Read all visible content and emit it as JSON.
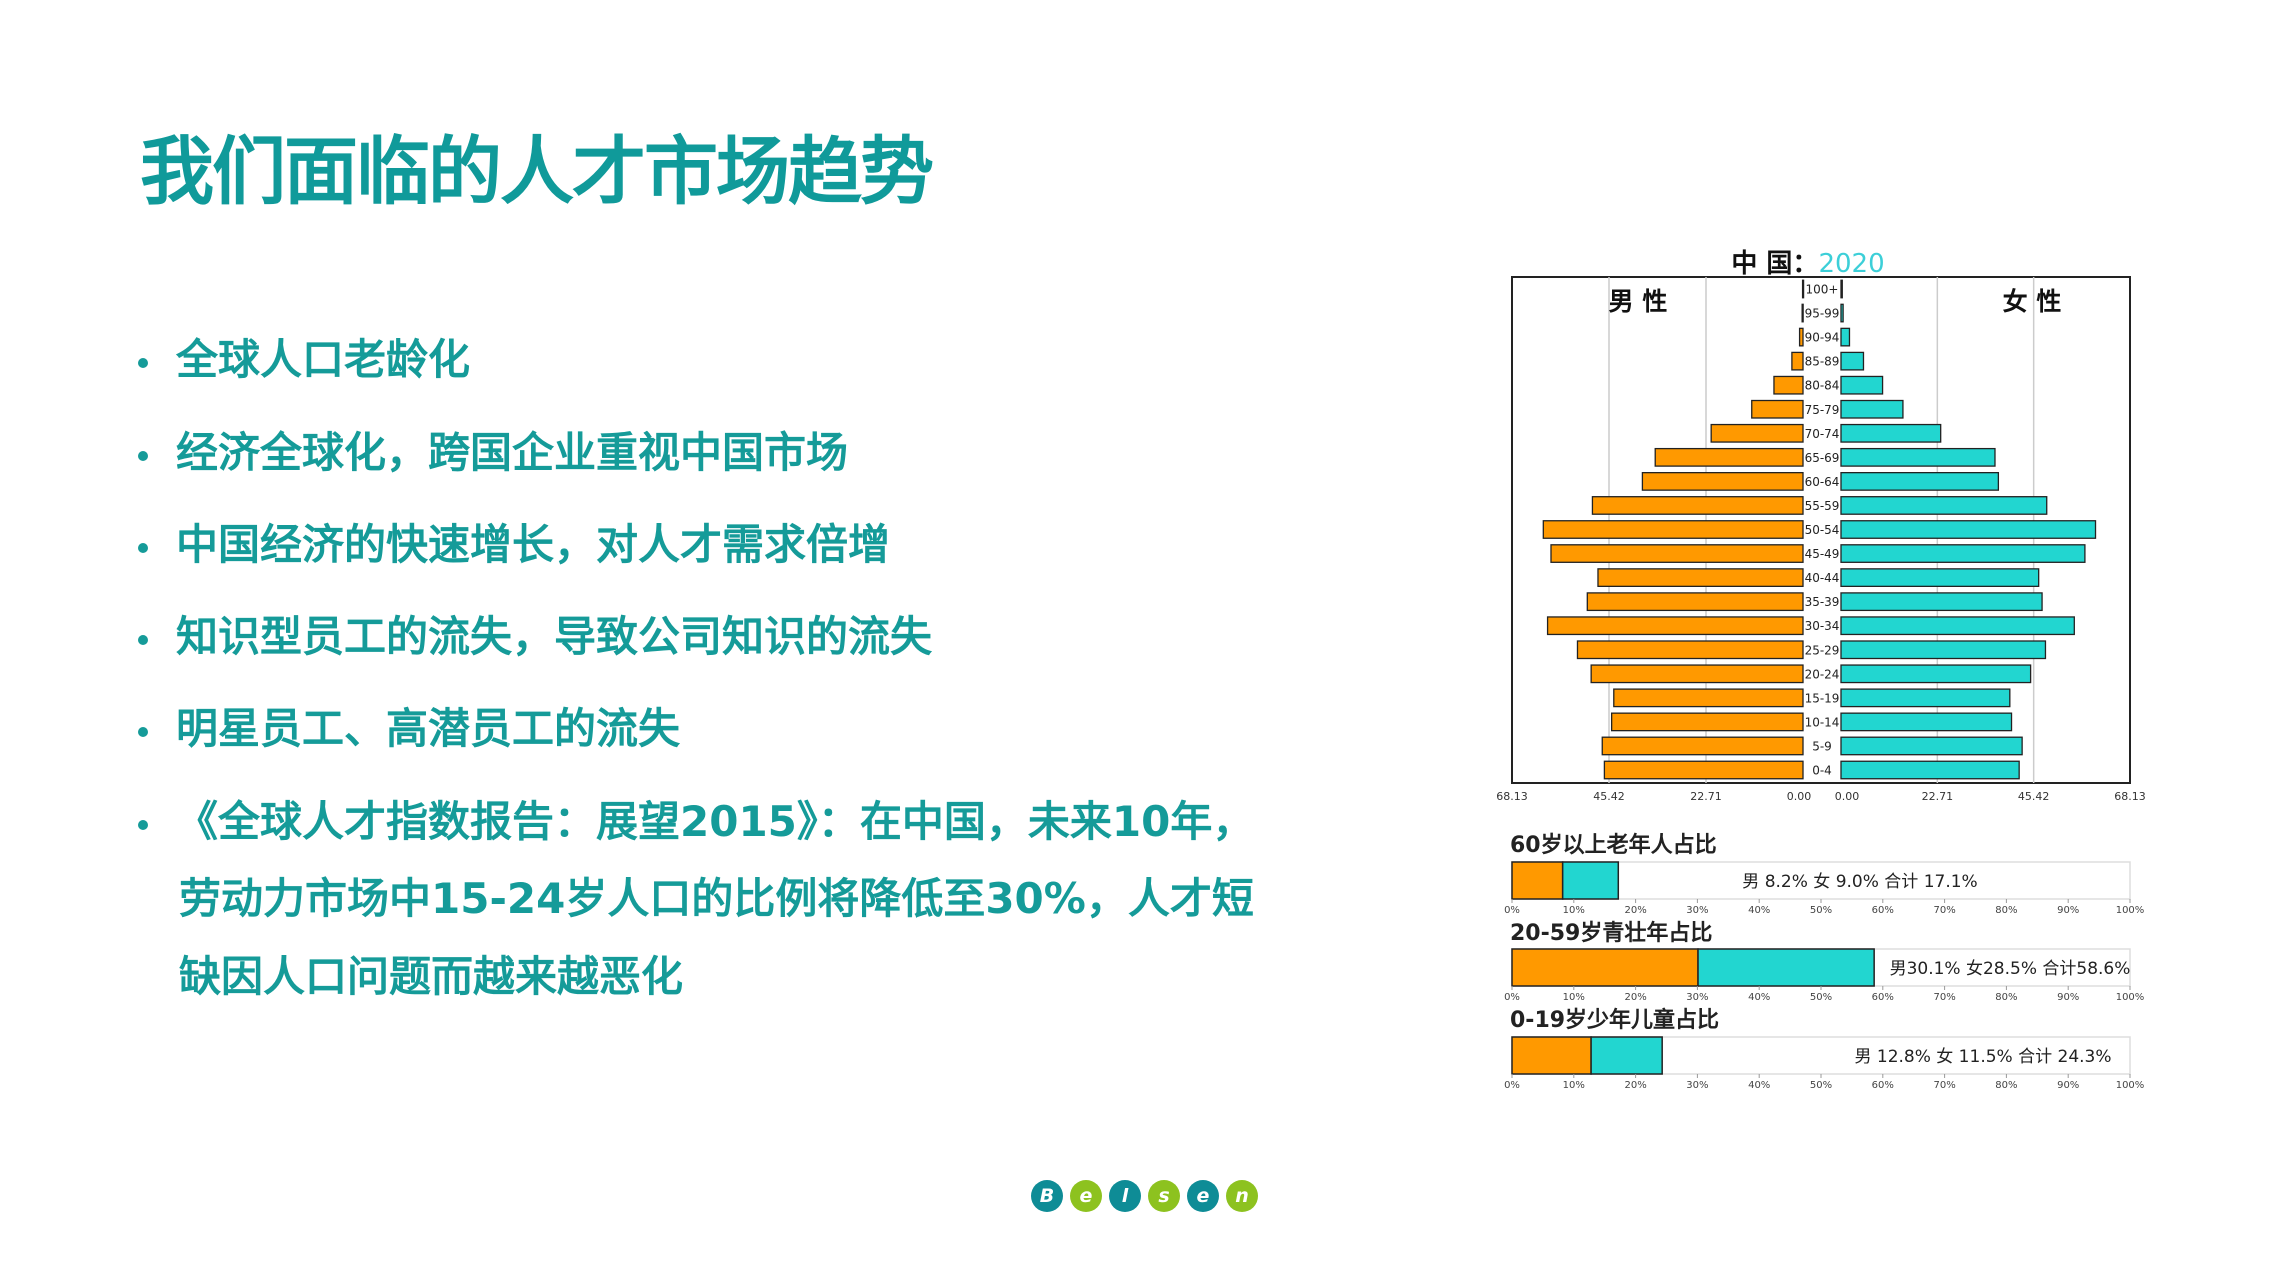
{
  "title": "我们面临的人才市场趋势",
  "bullets": [
    "全球人口老龄化",
    "经济全球化，跨国企业重视中国市场",
    "中国经济的快速增长，对人才需求倍增",
    "知识型员工的流失，导致公司知识的流失",
    "明星员工、高潜员工的流失",
    "《全球人才指数报告：展望2015》：在中国，未来10年，"
  ],
  "bullet_continuation": [
    "劳动力市场中15-24岁人口的比例将降低至30%，人才短",
    "缺因人口问题而越来越恶化"
  ],
  "logo": {
    "letters": [
      "B",
      "e",
      "l",
      "s",
      "e",
      "n"
    ],
    "colors": [
      "#0e8c96",
      "#8dc21f"
    ]
  },
  "colors": {
    "male": "#ff9900",
    "female": "#22d6d0",
    "text": "#159b99"
  },
  "chart_data": [
    {
      "type": "bar",
      "subtype": "population-pyramid",
      "title_prefix": "中 国：",
      "title_year": "2020",
      "male_label": "男 性",
      "female_label": "女 性",
      "categories": [
        "100+",
        "95-99",
        "90-94",
        "85-89",
        "80-84",
        "75-79",
        "70-74",
        "65-69",
        "60-64",
        "55-59",
        "50-54",
        "45-49",
        "40-44",
        "35-39",
        "30-34",
        "25-29",
        "20-24",
        "15-19",
        "10-14",
        "5-9",
        "0-4"
      ],
      "series": [
        {
          "name": "男 性",
          "values": [
            0.1,
            0.2,
            0.8,
            2.6,
            6.8,
            12,
            21.5,
            34.6,
            37.6,
            49.3,
            60.8,
            59,
            48,
            50.5,
            59.8,
            52.8,
            49.6,
            44.3,
            44.8,
            47,
            46.5
          ]
        },
        {
          "name": "女 性",
          "values": [
            0.3,
            0.5,
            2,
            5.3,
            9.8,
            14.6,
            23.5,
            36.3,
            37.1,
            48.5,
            60,
            57.5,
            46.6,
            47.4,
            55,
            48.2,
            44.7,
            39.8,
            40.2,
            42.7,
            42
          ]
        }
      ],
      "xticks_male": [
        "68.13",
        "45.42",
        "22.71",
        "0.00"
      ],
      "xticks_female": [
        "0.00",
        "22.71",
        "45.42",
        "68.13"
      ],
      "xlim": [
        0,
        68.13
      ],
      "grid": true
    },
    {
      "type": "bar",
      "subtype": "stacked-horizontal",
      "title": "60岁以上老年人占比",
      "values": {
        "male": 8.2,
        "female": 9.0,
        "total": 17.1
      },
      "label": "男 8.2%  女 9.0%  合计 17.1%",
      "xticks": [
        "0%",
        "10%",
        "20%",
        "30%",
        "40%",
        "50%",
        "60%",
        "70%",
        "80%",
        "90%",
        "100%"
      ],
      "xlim": [
        0,
        100
      ]
    },
    {
      "type": "bar",
      "subtype": "stacked-horizontal",
      "title": "20-59岁青壮年占比",
      "values": {
        "male": 30.1,
        "female": 28.5,
        "total": 58.6
      },
      "label": "男30.1%  女28.5%  合计58.6%",
      "xticks": [
        "0%",
        "10%",
        "20%",
        "30%",
        "40%",
        "50%",
        "60%",
        "70%",
        "80%",
        "90%",
        "100%"
      ],
      "xlim": [
        0,
        100
      ]
    },
    {
      "type": "bar",
      "subtype": "stacked-horizontal",
      "title": "0-19岁少年儿童占比",
      "values": {
        "male": 12.8,
        "female": 11.5,
        "total": 24.3
      },
      "label": "男 12.8%  女 11.5%  合计  24.3%",
      "xticks": [
        "0%",
        "10%",
        "20%",
        "30%",
        "40%",
        "50%",
        "60%",
        "70%",
        "80%",
        "90%",
        "100%"
      ],
      "xlim": [
        0,
        100
      ]
    }
  ]
}
